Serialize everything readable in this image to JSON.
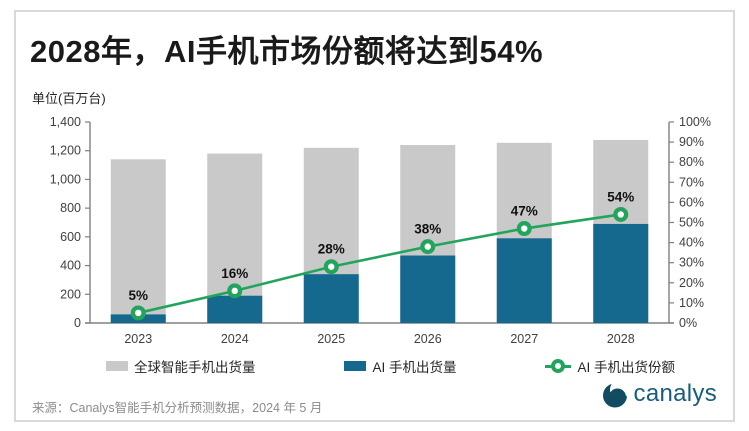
{
  "card": {
    "title": "2028年，AI手机市场份额将达到54%",
    "unit_label": "单位(百万台)",
    "source": "来源：Canalys智能手机分析预测数据，2024 年 5 月",
    "logo_text": "canalys"
  },
  "colors": {
    "global_bar": "#c9c9c9",
    "ai_bar": "#15698f",
    "share_line": "#22a45c",
    "axis": "#808080",
    "tick_text": "#404040",
    "data_label": "#111111",
    "logo": "#175d7d"
  },
  "chart_data": {
    "type": "combo",
    "title": "2028年，AI手机市场份额将达到54%",
    "ylabel_left": "单位(百万台)",
    "categories": [
      "2023",
      "2024",
      "2025",
      "2026",
      "2027",
      "2028"
    ],
    "series": [
      {
        "name": "全球智能手机出货量",
        "type": "bar",
        "axis": "left",
        "color": "#c9c9c9",
        "values": [
          1140,
          1180,
          1220,
          1240,
          1255,
          1275
        ]
      },
      {
        "name": "AI 手机出货量",
        "type": "bar",
        "axis": "left",
        "color": "#15698f",
        "values": [
          60,
          190,
          340,
          470,
          590,
          690
        ]
      },
      {
        "name": "AI 手机出货份额",
        "type": "line",
        "axis": "right",
        "color": "#22a45c",
        "values": [
          5,
          16,
          28,
          38,
          47,
          54
        ],
        "labels": [
          "5%",
          "16%",
          "28%",
          "38%",
          "47%",
          "54%"
        ]
      }
    ],
    "left_axis": {
      "min": 0,
      "max": 1400,
      "step": 200,
      "tick_labels": [
        "0",
        "200",
        "400",
        "600",
        "800",
        "1,000",
        "1,200",
        "1,400"
      ]
    },
    "right_axis": {
      "min": 0,
      "max": 100,
      "step": 10,
      "tick_labels": [
        "0%",
        "10%",
        "20%",
        "30%",
        "40%",
        "50%",
        "60%",
        "70%",
        "80%",
        "90%",
        "100%"
      ]
    },
    "legend_position": "bottom",
    "grid": false,
    "bar_layout": "overlapped"
  }
}
